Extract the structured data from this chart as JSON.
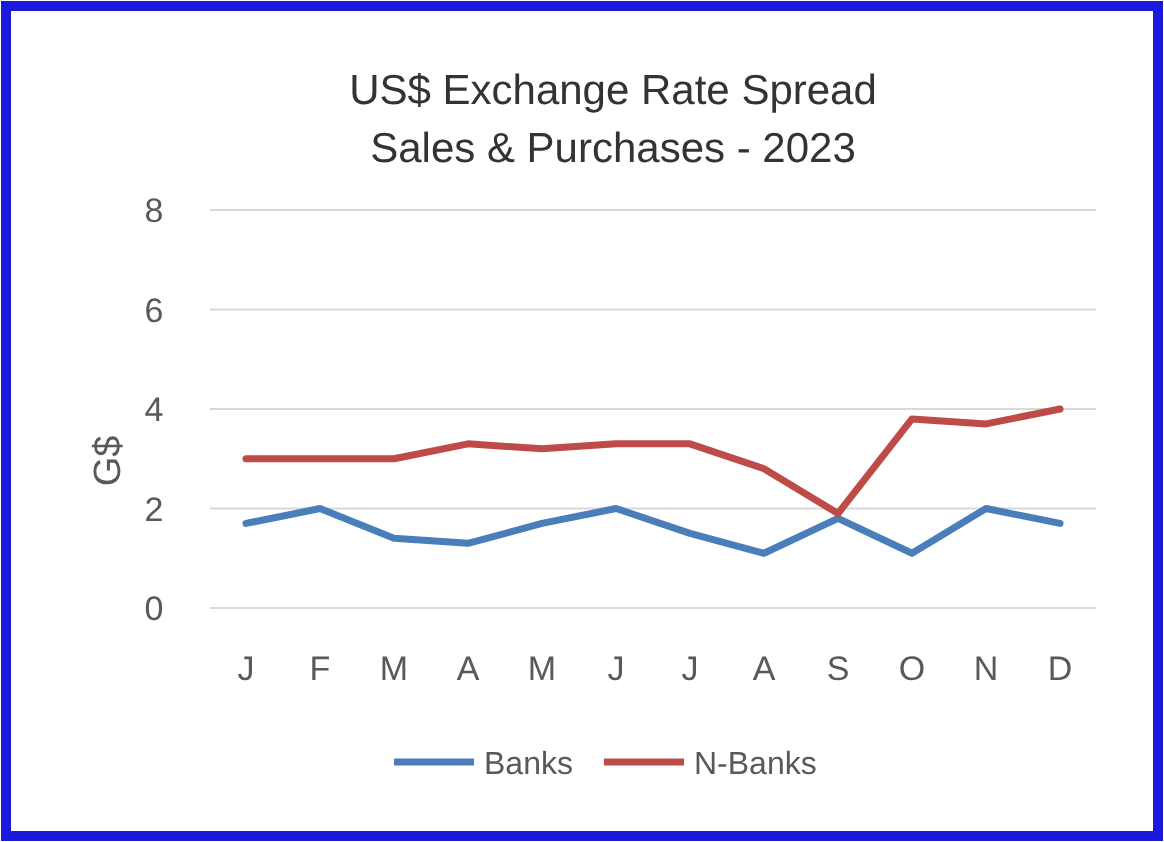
{
  "chart_data": {
    "type": "line",
    "title": "US$ Exchange Rate Spread\nSales & Purchases - 2023",
    "ylabel": "G$",
    "categories": [
      "J",
      "F",
      "M",
      "A",
      "M",
      "J",
      "J",
      "A",
      "S",
      "O",
      "N",
      "D"
    ],
    "series": [
      {
        "name": "Banks",
        "color": "#4a7ebb",
        "values": [
          1.7,
          2.0,
          1.4,
          1.3,
          1.7,
          2.0,
          1.5,
          1.1,
          1.8,
          1.1,
          2.0,
          1.7
        ]
      },
      {
        "name": "N-Banks",
        "color": "#be4b48",
        "values": [
          3.0,
          3.0,
          3.0,
          3.3,
          3.2,
          3.3,
          3.3,
          2.8,
          1.9,
          3.8,
          3.7,
          4.0
        ]
      }
    ],
    "ylim": [
      0,
      8
    ],
    "yticks": [
      0,
      2,
      4,
      6,
      8
    ],
    "grid": "y",
    "legend": "bottom",
    "marker": "none",
    "line_style": "solid"
  }
}
